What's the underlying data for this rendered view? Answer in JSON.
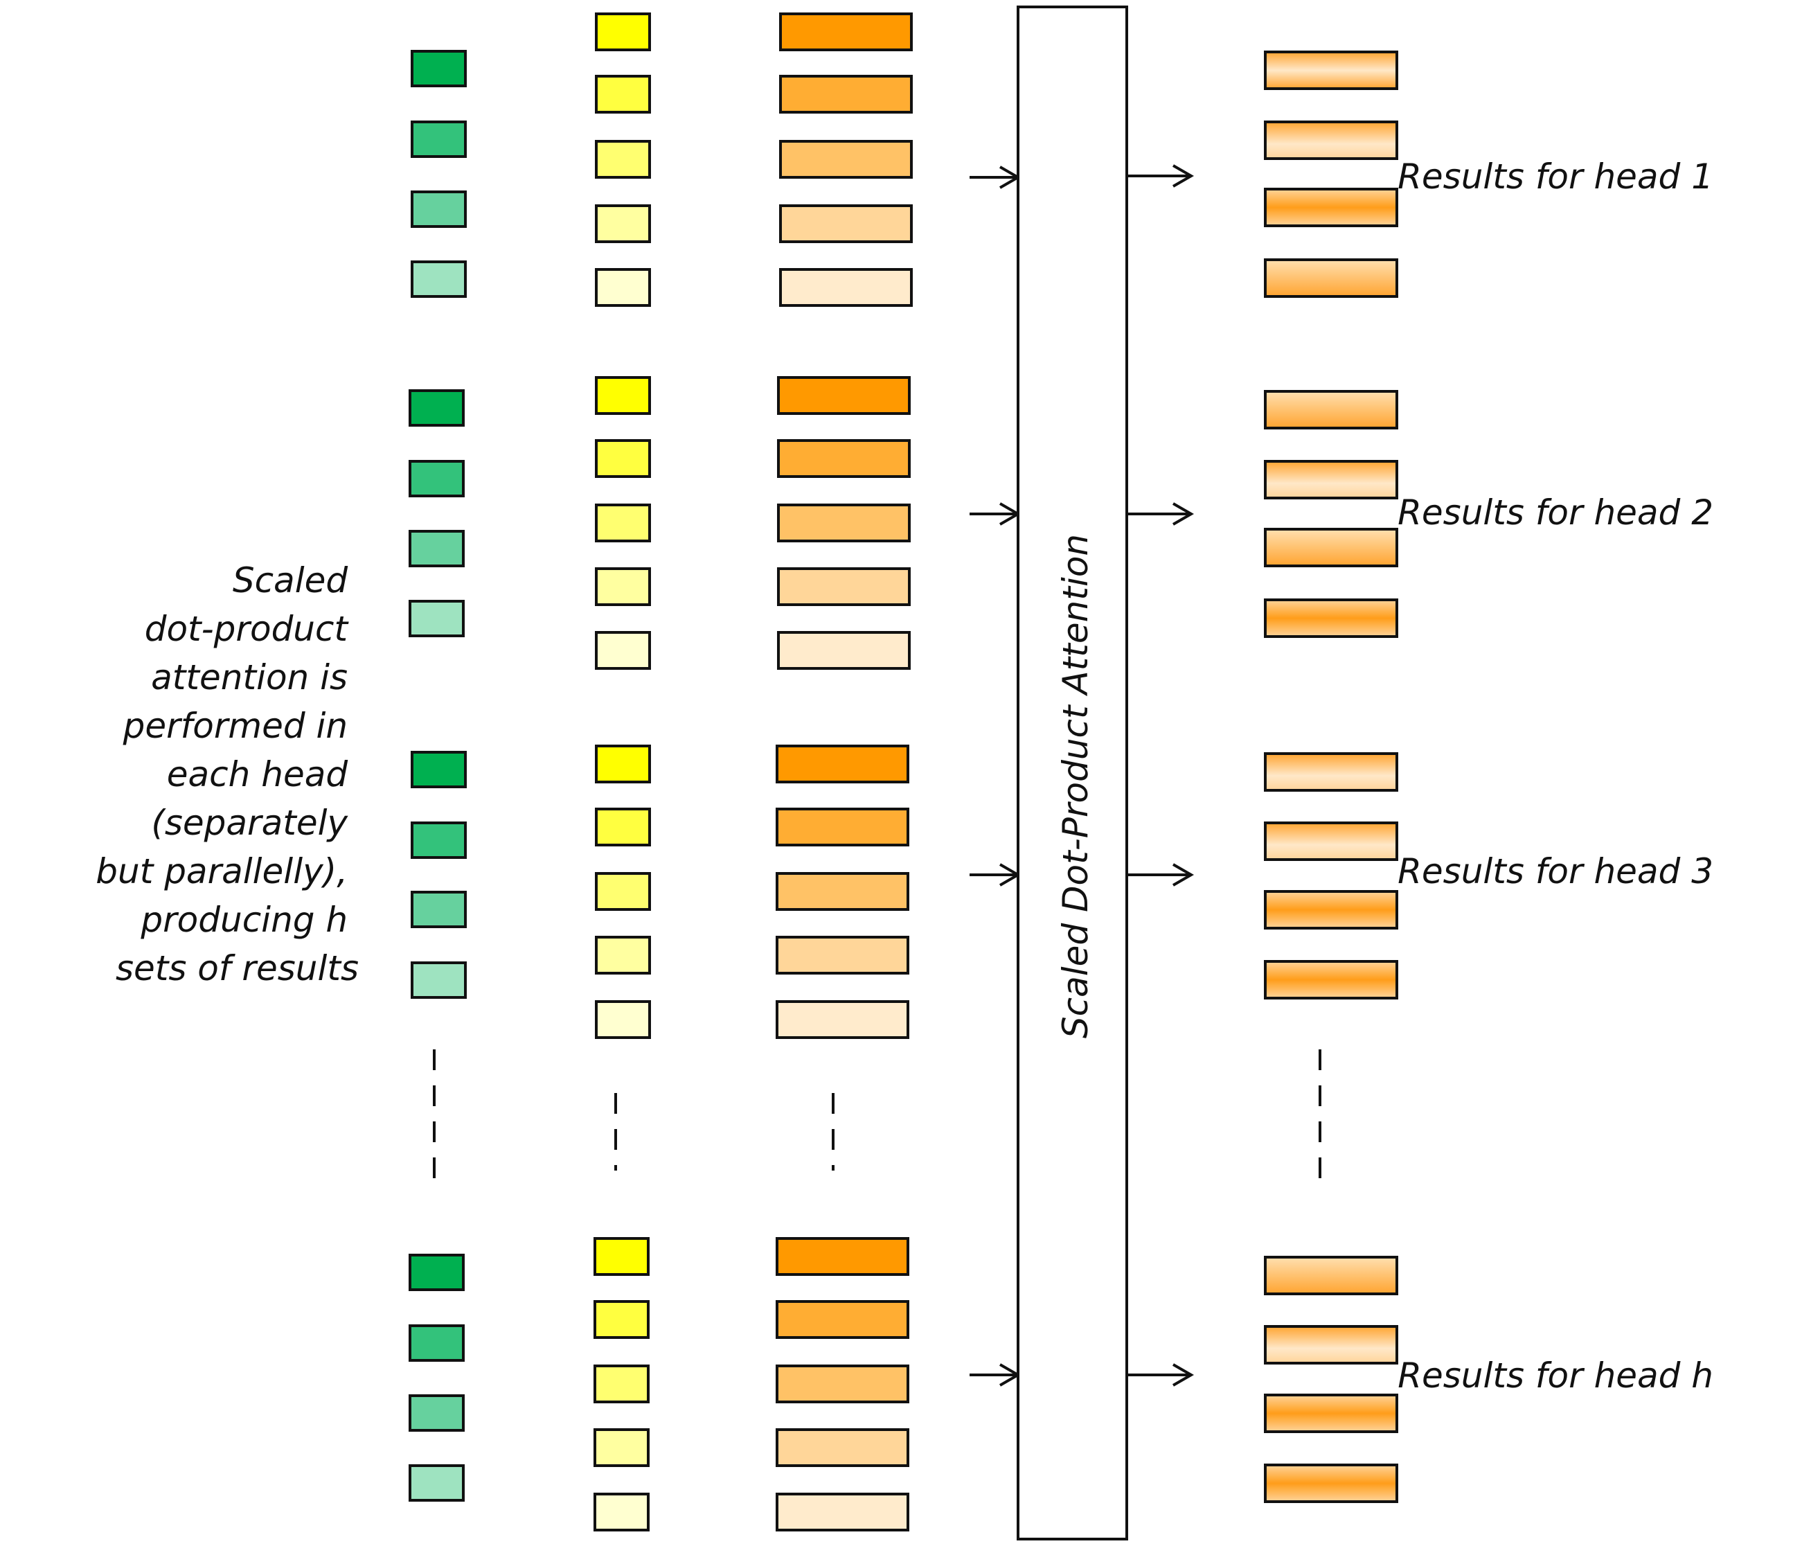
{
  "side_note_lines": [
    "Scaled",
    "dot-product",
    "attention is",
    "performed in",
    "each head",
    "(separately",
    "but parallelly),",
    "producing h",
    "sets of results"
  ],
  "attention_block_label": "Scaled Dot-Product Attention",
  "heads": [
    {
      "result_label": "Results for head 1",
      "result_styles": [
        "light",
        "lighter",
        "strong",
        "medium"
      ]
    },
    {
      "result_label": "Results for head 2",
      "result_styles": [
        "medium",
        "lighter",
        "medium",
        "strong"
      ]
    },
    {
      "result_label": "Results for head 3",
      "result_styles": [
        "lighter",
        "lighter",
        "strong",
        "strong"
      ]
    },
    {
      "result_label": "Results for head h",
      "result_styles": [
        "medium",
        "lighter",
        "strong",
        "strong"
      ]
    }
  ],
  "colors": {
    "query": [
      "#00b050",
      "#33c27b",
      "#66d19e",
      "#9ee3c0"
    ],
    "key": [
      "#ffff00",
      "#ffff40",
      "#ffff70",
      "#ffffa0",
      "#ffffd0"
    ],
    "value": [
      "#ff9900",
      "#ffad33",
      "#ffc266",
      "#ffd699",
      "#ffebcc"
    ],
    "result_edge": "#ffa430",
    "result_mid": "#ffe8c8",
    "outline": "#111111"
  }
}
